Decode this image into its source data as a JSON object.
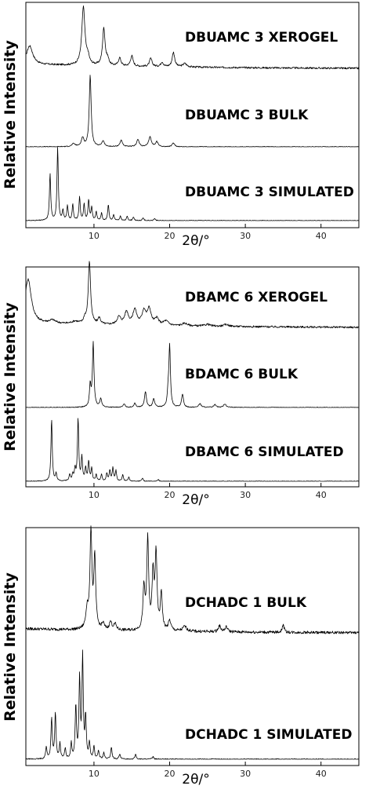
{
  "chart_data": [
    {
      "type": "line",
      "xlabel": "2θ/°",
      "ylabel": "Relative Intensity",
      "xlim": [
        1,
        45
      ],
      "x_ticks": [
        10,
        20,
        30,
        40
      ],
      "grid": false,
      "series": [
        {
          "name": "DBUAMC 3 XEROGEL",
          "baseline": 0.08,
          "peaks": [
            [
              1.5,
              0.32,
              0.5
            ],
            [
              8.6,
              1.0,
              0.25
            ],
            [
              9.2,
              0.12,
              0.2
            ],
            [
              11.3,
              0.64,
              0.2
            ],
            [
              11.8,
              0.1,
              0.2
            ],
            [
              13.4,
              0.14,
              0.2
            ],
            [
              15.0,
              0.18,
              0.2
            ],
            [
              17.5,
              0.14,
              0.2
            ],
            [
              19.0,
              0.08,
              0.2
            ],
            [
              20.5,
              0.25,
              0.2
            ],
            [
              22.0,
              0.06,
              0.3
            ]
          ]
        },
        {
          "name": "DBUAMC 3 BULK",
          "baseline": 0.0,
          "peaks": [
            [
              7.3,
              0.04,
              0.25
            ],
            [
              8.5,
              0.12,
              0.2
            ],
            [
              9.5,
              1.0,
              0.15
            ],
            [
              11.2,
              0.08,
              0.2
            ],
            [
              13.6,
              0.09,
              0.2
            ],
            [
              15.8,
              0.1,
              0.2
            ],
            [
              17.4,
              0.14,
              0.2
            ],
            [
              18.3,
              0.07,
              0.2
            ],
            [
              20.5,
              0.05,
              0.2
            ]
          ]
        },
        {
          "name": "DBUAMC 3 SIMULATED",
          "baseline": 0.0,
          "peaks": [
            [
              4.2,
              0.64,
              0.1
            ],
            [
              5.2,
              1.0,
              0.1
            ],
            [
              5.9,
              0.14,
              0.1
            ],
            [
              6.5,
              0.2,
              0.1
            ],
            [
              7.2,
              0.22,
              0.1
            ],
            [
              8.1,
              0.32,
              0.1
            ],
            [
              8.7,
              0.22,
              0.1
            ],
            [
              9.3,
              0.28,
              0.1
            ],
            [
              9.7,
              0.18,
              0.1
            ],
            [
              10.3,
              0.12,
              0.1
            ],
            [
              11.0,
              0.1,
              0.1
            ],
            [
              11.9,
              0.22,
              0.1
            ],
            [
              12.6,
              0.08,
              0.1
            ],
            [
              13.5,
              0.06,
              0.1
            ],
            [
              14.4,
              0.06,
              0.1
            ],
            [
              15.2,
              0.05,
              0.1
            ],
            [
              16.5,
              0.04,
              0.1
            ],
            [
              18.0,
              0.03,
              0.1
            ]
          ]
        },
        {
          "name": "DBAMC 6 XEROGEL",
          "baseline": 0.08,
          "peaks": [
            [
              1.3,
              0.7,
              0.5
            ],
            [
              4.5,
              0.05,
              0.5
            ],
            [
              7.5,
              0.04,
              0.5
            ],
            [
              8.8,
              0.08,
              0.2
            ],
            [
              9.4,
              1.0,
              0.18
            ],
            [
              10.7,
              0.1,
              0.2
            ],
            [
              13.3,
              0.12,
              0.3
            ],
            [
              14.3,
              0.2,
              0.3
            ],
            [
              15.4,
              0.24,
              0.3
            ],
            [
              16.6,
              0.22,
              0.3
            ],
            [
              17.3,
              0.25,
              0.3
            ],
            [
              18.3,
              0.1,
              0.3
            ],
            [
              19.5,
              0.07,
              0.4
            ],
            [
              22.0,
              0.04,
              0.4
            ],
            [
              25.0,
              0.03,
              0.4
            ],
            [
              27.5,
              0.03,
              0.4
            ]
          ]
        },
        {
          "name": "BDAMC 6 BULK",
          "baseline": 0.0,
          "peaks": [
            [
              9.5,
              0.3,
              0.12
            ],
            [
              9.9,
              0.9,
              0.12
            ],
            [
              10.9,
              0.12,
              0.15
            ],
            [
              14.0,
              0.05,
              0.15
            ],
            [
              15.4,
              0.06,
              0.15
            ],
            [
              16.8,
              0.22,
              0.15
            ],
            [
              17.9,
              0.12,
              0.15
            ],
            [
              19.8,
              0.18,
              0.12
            ],
            [
              20.0,
              0.85,
              0.12
            ],
            [
              21.7,
              0.18,
              0.15
            ],
            [
              24.0,
              0.05,
              0.2
            ],
            [
              26.0,
              0.04,
              0.2
            ],
            [
              27.3,
              0.05,
              0.2
            ]
          ]
        },
        {
          "name": "DBAMC 6 SIMULATED",
          "baseline": 0.0,
          "peaks": [
            [
              4.4,
              0.96,
              0.1
            ],
            [
              5.0,
              0.12,
              0.1
            ],
            [
              6.8,
              0.1,
              0.1
            ],
            [
              7.2,
              0.1,
              0.1
            ],
            [
              7.5,
              0.18,
              0.1
            ],
            [
              7.9,
              0.96,
              0.1
            ],
            [
              8.4,
              0.36,
              0.1
            ],
            [
              8.9,
              0.2,
              0.1
            ],
            [
              9.3,
              0.3,
              0.1
            ],
            [
              9.7,
              0.2,
              0.1
            ],
            [
              10.3,
              0.1,
              0.1
            ],
            [
              11.0,
              0.1,
              0.1
            ],
            [
              11.7,
              0.12,
              0.1
            ],
            [
              12.1,
              0.16,
              0.1
            ],
            [
              12.5,
              0.2,
              0.1
            ],
            [
              12.9,
              0.16,
              0.1
            ],
            [
              13.8,
              0.1,
              0.1
            ],
            [
              14.6,
              0.06,
              0.1
            ],
            [
              16.4,
              0.05,
              0.1
            ],
            [
              18.5,
              0.03,
              0.1
            ]
          ]
        }
      ]
    },
    {
      "type": "line",
      "xlabel": "2θ/°",
      "ylabel": "Relative Intensity",
      "xlim": [
        1,
        45
      ],
      "x_ticks": [
        10,
        20,
        30,
        40
      ],
      "grid": false,
      "series": [
        {
          "name": "DCHADC 1 BULK",
          "baseline": 0.05,
          "peaks": [
            [
              9.1,
              0.2,
              0.2
            ],
            [
              9.6,
              1.0,
              0.15
            ],
            [
              10.1,
              0.72,
              0.15
            ],
            [
              11.2,
              0.06,
              0.2
            ],
            [
              12.2,
              0.08,
              0.2
            ],
            [
              12.8,
              0.06,
              0.2
            ],
            [
              16.6,
              0.42,
              0.15
            ],
            [
              17.1,
              0.92,
              0.15
            ],
            [
              17.8,
              0.55,
              0.15
            ],
            [
              18.2,
              0.78,
              0.15
            ],
            [
              18.9,
              0.38,
              0.15
            ],
            [
              20.0,
              0.1,
              0.2
            ],
            [
              22.0,
              0.05,
              0.3
            ],
            [
              26.6,
              0.06,
              0.2
            ],
            [
              27.5,
              0.05,
              0.2
            ],
            [
              35.0,
              0.08,
              0.15
            ]
          ]
        },
        {
          "name": "DCHADC 1 SIMULATED",
          "baseline": 0.0,
          "peaks": [
            [
              3.7,
              0.12,
              0.1
            ],
            [
              4.4,
              0.4,
              0.1
            ],
            [
              4.9,
              0.45,
              0.1
            ],
            [
              5.5,
              0.15,
              0.1
            ],
            [
              6.2,
              0.1,
              0.1
            ],
            [
              7.0,
              0.15,
              0.1
            ],
            [
              7.6,
              0.52,
              0.1
            ],
            [
              8.1,
              0.78,
              0.1
            ],
            [
              8.5,
              1.0,
              0.1
            ],
            [
              8.9,
              0.4,
              0.1
            ],
            [
              9.4,
              0.15,
              0.1
            ],
            [
              10.0,
              0.12,
              0.1
            ],
            [
              10.6,
              0.08,
              0.1
            ],
            [
              11.3,
              0.06,
              0.1
            ],
            [
              12.3,
              0.12,
              0.1
            ],
            [
              13.4,
              0.05,
              0.1
            ],
            [
              15.5,
              0.05,
              0.1
            ],
            [
              17.8,
              0.03,
              0.1
            ]
          ]
        }
      ]
    }
  ]
}
